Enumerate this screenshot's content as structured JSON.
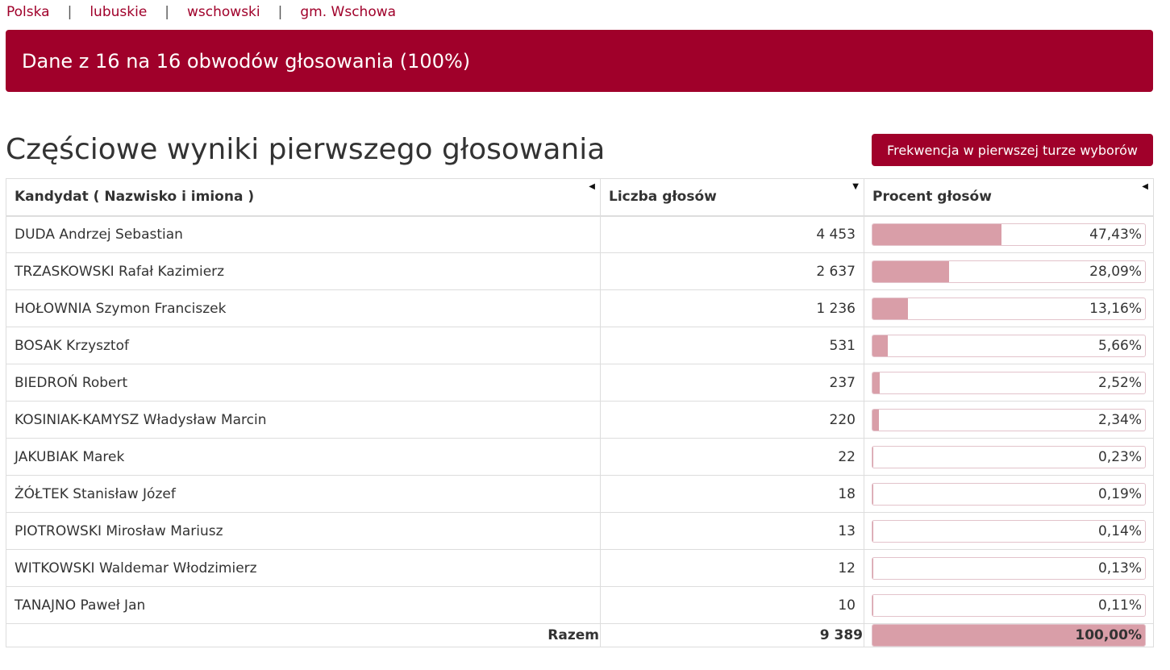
{
  "breadcrumb": {
    "items": [
      "Polska",
      "lubuskie",
      "wschowski",
      "gm. Wschowa"
    ],
    "separator": "|"
  },
  "banner": {
    "text": "Dane z 16 na 16 obwodów głosowania (100%)"
  },
  "page_title": "Częściowe wyniki pierwszego głosowania",
  "turnout_button": "Frekwencja w pierwszej turze wyborów",
  "table": {
    "headers": {
      "candidate": "Kandydat ( Nazwisko i imiona )",
      "votes": "Liczba głosów",
      "percent": "Procent głosów"
    },
    "sort_icons": {
      "candidate": "triangle-left-icon",
      "votes": "triangle-down-icon",
      "percent": "triangle-left-icon"
    },
    "rows": [
      {
        "name": "DUDA Andrzej Sebastian",
        "votes": "4 453",
        "percent": "47,43%",
        "share": 47.43
      },
      {
        "name": "TRZASKOWSKI Rafał Kazimierz",
        "votes": "2 637",
        "percent": "28,09%",
        "share": 28.09
      },
      {
        "name": "HOŁOWNIA Szymon Franciszek",
        "votes": "1 236",
        "percent": "13,16%",
        "share": 13.16
      },
      {
        "name": "BOSAK Krzysztof",
        "votes": "531",
        "percent": "5,66%",
        "share": 5.66
      },
      {
        "name": "BIEDROŃ Robert",
        "votes": "237",
        "percent": "2,52%",
        "share": 2.52
      },
      {
        "name": "KOSINIAK-KAMYSZ Władysław Marcin",
        "votes": "220",
        "percent": "2,34%",
        "share": 2.34
      },
      {
        "name": "JAKUBIAK Marek",
        "votes": "22",
        "percent": "0,23%",
        "share": 0.23
      },
      {
        "name": "ŻÓŁTEK Stanisław Józef",
        "votes": "18",
        "percent": "0,19%",
        "share": 0.19
      },
      {
        "name": "PIOTROWSKI Mirosław Mariusz",
        "votes": "13",
        "percent": "0,14%",
        "share": 0.14
      },
      {
        "name": "WITKOWSKI Waldemar Włodzimierz",
        "votes": "12",
        "percent": "0,13%",
        "share": 0.13
      },
      {
        "name": "TANAJNO Paweł Jan",
        "votes": "10",
        "percent": "0,11%",
        "share": 0.11
      }
    ],
    "total": {
      "label": "Razem",
      "votes": "9 389",
      "percent": "100,00%",
      "share": 100
    }
  },
  "colors": {
    "brand": "#a0002a",
    "bar_fill": "#d99ea8",
    "bar_border": "#e3c3cb"
  }
}
